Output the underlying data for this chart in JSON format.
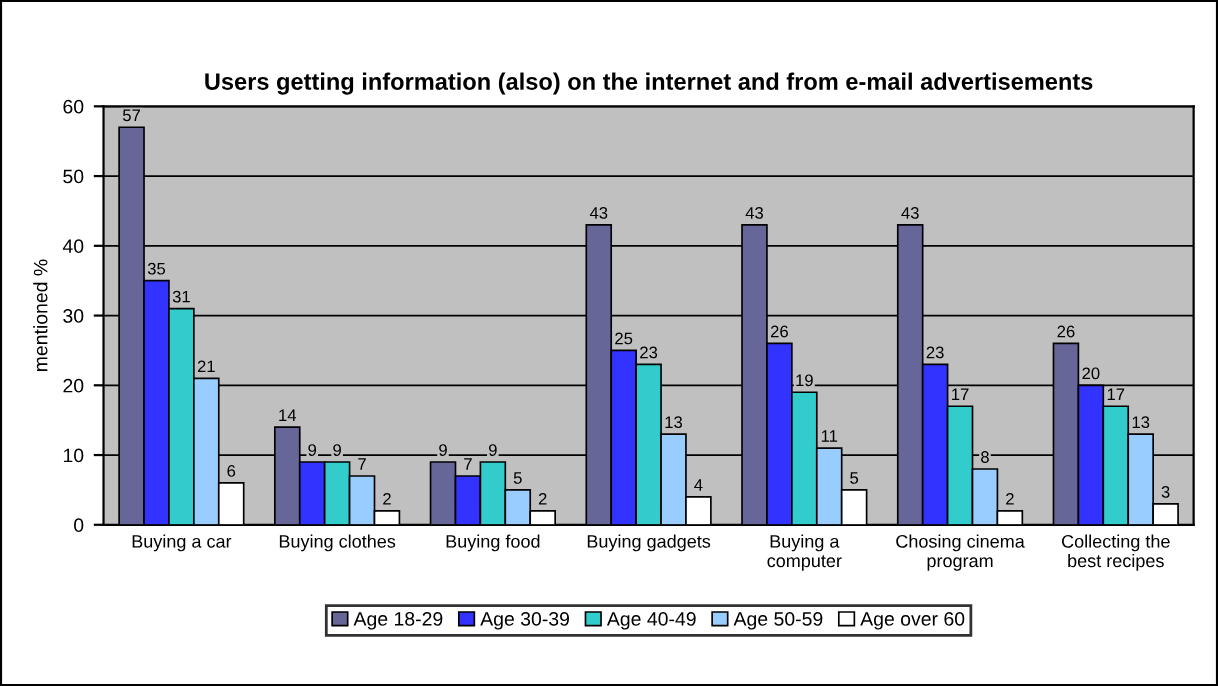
{
  "chart_data": {
    "type": "bar",
    "title": "Users getting information (also) on the internet and from e-mail advertisements",
    "ylabel": "mentioned %",
    "categories": [
      "Buying a car",
      "Buying clothes",
      "Buying food",
      "Buying gadgets",
      "Buying a computer",
      "Chosing cinema program",
      "Collecting the best recipes"
    ],
    "series": [
      {
        "name": "Age 18-29",
        "color": "#666699",
        "values": [
          57,
          14,
          9,
          43,
          43,
          43,
          26
        ]
      },
      {
        "name": "Age 30-39",
        "color": "#3333ff",
        "values": [
          35,
          9,
          7,
          25,
          26,
          23,
          20
        ]
      },
      {
        "name": "Age 40-49",
        "color": "#33cccc",
        "values": [
          31,
          9,
          9,
          23,
          19,
          17,
          17
        ]
      },
      {
        "name": "Age 50-59",
        "color": "#99ccff",
        "values": [
          21,
          7,
          5,
          13,
          11,
          8,
          13
        ]
      },
      {
        "name": "Age over 60",
        "color": "#ffffff",
        "values": [
          6,
          2,
          2,
          4,
          5,
          2,
          3
        ]
      }
    ],
    "ylim": [
      0,
      60
    ],
    "yticks": [
      0,
      10,
      20,
      30,
      40,
      50,
      60
    ],
    "grid": "y",
    "legend": "bottom",
    "data_labels": true
  }
}
